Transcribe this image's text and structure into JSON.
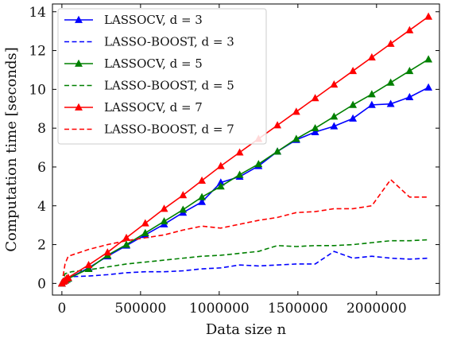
{
  "chart_data": {
    "type": "line",
    "xlabel": "Data size n",
    "ylabel": "Computation time [seconds]",
    "xlim": [
      -60000,
      2400000
    ],
    "ylim": [
      -0.6,
      14.4
    ],
    "xticks": [
      0,
      500000,
      1000000,
      1500000,
      2000000
    ],
    "xtick_labels": [
      "0",
      "500000",
      "1000000",
      "1500000",
      "2000000"
    ],
    "yticks": [
      0,
      2,
      4,
      6,
      8,
      10,
      12,
      14
    ],
    "ytick_labels": [
      "0",
      "2",
      "4",
      "6",
      "8",
      "10",
      "12",
      "14"
    ],
    "grid": false,
    "legend_position": "top-left",
    "series": [
      {
        "name": "LASSOCV, d = 3",
        "color": "#0000ff",
        "style": "solid",
        "marker": "triangle",
        "x": [
          0,
          10000,
          20000,
          30000,
          40000,
          170000,
          290000,
          410000,
          530000,
          650000,
          770000,
          890000,
          1010000,
          1130000,
          1250000,
          1370000,
          1490000,
          1610000,
          1730000,
          1850000,
          1970000,
          2090000,
          2210000,
          2330000
        ],
        "y": [
          0.0,
          0.1,
          0.15,
          0.2,
          0.25,
          0.8,
          1.4,
          1.95,
          2.5,
          3.05,
          3.65,
          4.2,
          5.2,
          5.5,
          6.05,
          6.8,
          7.4,
          7.8,
          8.1,
          8.5,
          9.2,
          9.25,
          9.6,
          10.1
        ]
      },
      {
        "name": "LASSO-BOOST, d = 3",
        "color": "#0000ff",
        "style": "dashed",
        "marker": "none",
        "x": [
          0,
          20000,
          60000,
          170000,
          290000,
          410000,
          530000,
          650000,
          770000,
          890000,
          1010000,
          1130000,
          1250000,
          1370000,
          1490000,
          1610000,
          1730000,
          1850000,
          1970000,
          2090000,
          2210000,
          2330000
        ],
        "y": [
          0.0,
          0.3,
          0.35,
          0.38,
          0.45,
          0.55,
          0.6,
          0.6,
          0.65,
          0.75,
          0.8,
          0.95,
          0.9,
          0.95,
          1.0,
          1.0,
          1.65,
          1.3,
          1.4,
          1.3,
          1.25,
          1.3
        ]
      },
      {
        "name": "LASSOCV, d = 5",
        "color": "#008000",
        "style": "solid",
        "marker": "triangle",
        "x": [
          0,
          10000,
          20000,
          30000,
          40000,
          170000,
          290000,
          410000,
          530000,
          650000,
          770000,
          890000,
          1010000,
          1130000,
          1250000,
          1370000,
          1490000,
          1610000,
          1730000,
          1850000,
          1970000,
          2090000,
          2210000,
          2330000
        ],
        "y": [
          0.0,
          0.1,
          0.15,
          0.2,
          0.25,
          0.75,
          1.45,
          2.0,
          2.6,
          3.2,
          3.8,
          4.45,
          5.0,
          5.6,
          6.15,
          6.8,
          7.45,
          8.0,
          8.6,
          9.2,
          9.75,
          10.35,
          10.95,
          11.55
        ]
      },
      {
        "name": "LASSO-BOOST, d = 5",
        "color": "#008000",
        "style": "dashed",
        "marker": "none",
        "x": [
          0,
          20000,
          60000,
          170000,
          290000,
          410000,
          530000,
          650000,
          770000,
          890000,
          1010000,
          1130000,
          1250000,
          1370000,
          1490000,
          1610000,
          1730000,
          1850000,
          1970000,
          2090000,
          2210000,
          2330000
        ],
        "y": [
          0.0,
          0.5,
          0.6,
          0.7,
          0.85,
          1.0,
          1.1,
          1.2,
          1.3,
          1.4,
          1.45,
          1.55,
          1.65,
          1.95,
          1.9,
          1.95,
          1.95,
          2.0,
          2.1,
          2.2,
          2.2,
          2.25
        ]
      },
      {
        "name": "LASSOCV, d = 7",
        "color": "#ff0000",
        "style": "solid",
        "marker": "triangle",
        "x": [
          0,
          10000,
          20000,
          30000,
          40000,
          170000,
          290000,
          410000,
          530000,
          650000,
          770000,
          890000,
          1010000,
          1130000,
          1250000,
          1370000,
          1490000,
          1610000,
          1730000,
          1850000,
          1970000,
          2090000,
          2210000,
          2330000
        ],
        "y": [
          0.0,
          0.1,
          0.15,
          0.25,
          0.3,
          0.95,
          1.6,
          2.35,
          3.1,
          3.85,
          4.55,
          5.3,
          6.05,
          6.75,
          7.45,
          8.15,
          8.85,
          9.55,
          10.25,
          10.95,
          11.65,
          12.35,
          13.05,
          13.75
        ]
      },
      {
        "name": "LASSO-BOOST, d = 7",
        "color": "#ff0000",
        "style": "dashed",
        "marker": "none",
        "x": [
          0,
          20000,
          40000,
          170000,
          290000,
          410000,
          530000,
          650000,
          770000,
          890000,
          1010000,
          1130000,
          1250000,
          1370000,
          1490000,
          1610000,
          1730000,
          1850000,
          1970000,
          2090000,
          2210000,
          2330000
        ],
        "y": [
          0.0,
          1.0,
          1.4,
          1.75,
          2.0,
          2.2,
          2.35,
          2.5,
          2.75,
          2.95,
          2.85,
          3.05,
          3.25,
          3.4,
          3.65,
          3.7,
          3.85,
          3.85,
          4.0,
          5.35,
          4.45,
          4.45
        ]
      }
    ]
  }
}
